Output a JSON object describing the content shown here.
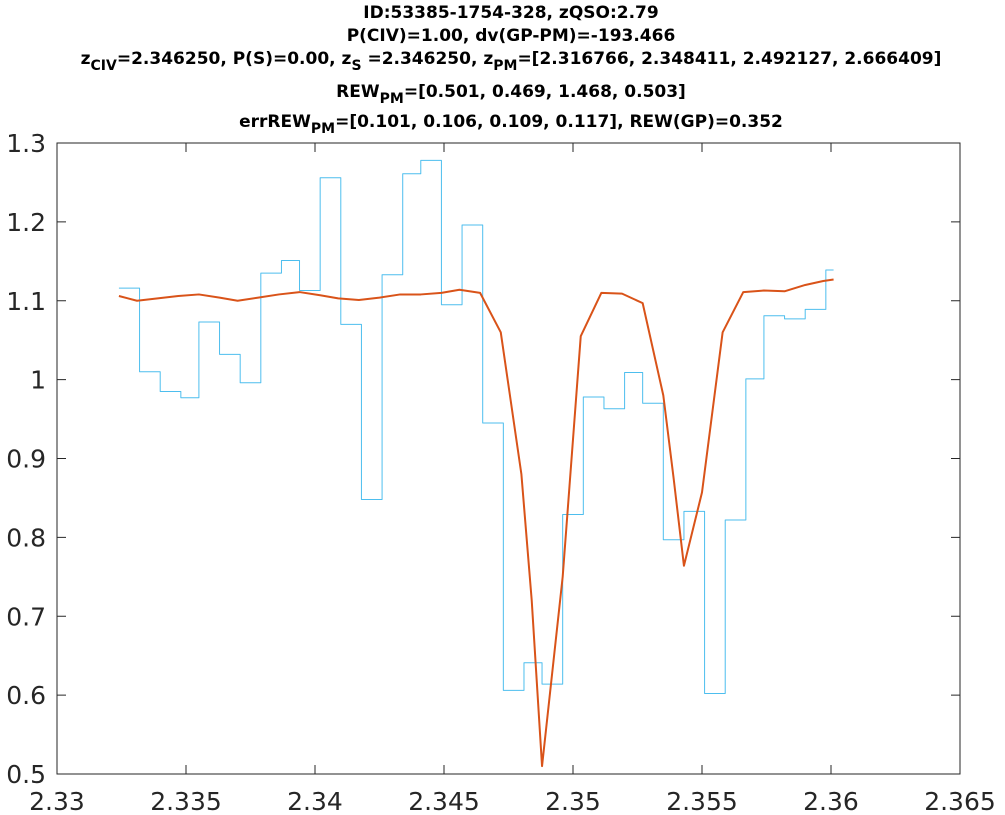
{
  "chart_data": {
    "type": "line",
    "title_lines": [
      {
        "segments": [
          {
            "text": "ID:53385-1754-328, zQSO:2.79"
          }
        ]
      },
      {
        "segments": [
          {
            "text": "P(CIV)=1.00, dv(GP-PM)=-193.466"
          }
        ]
      },
      {
        "segments": [
          {
            "text": "z"
          },
          {
            "text": "CIV",
            "sub": true
          },
          {
            "text": "=2.346250, P(S)=0.00, z"
          },
          {
            "text": "S",
            "sub": true
          },
          {
            "text": " =2.346250, z"
          },
          {
            "text": "PM",
            "sub": true
          },
          {
            "text": "=[2.316766, 2.348411, 2.492127, 2.666409]"
          }
        ]
      },
      {
        "segments": [
          {
            "text": "REW"
          },
          {
            "text": "PM",
            "sub": true
          },
          {
            "text": "=[0.501, 0.469, 1.468, 0.503]"
          }
        ]
      },
      {
        "segments": [
          {
            "text": "errREW"
          },
          {
            "text": "PM",
            "sub": true
          },
          {
            "text": "=[0.101, 0.106, 0.109, 0.117], REW(GP)=0.352"
          }
        ]
      }
    ],
    "xlim": [
      2.33,
      2.365
    ],
    "ylim": [
      0.5,
      1.3
    ],
    "x_ticks": [
      2.33,
      2.335,
      2.34,
      2.345,
      2.35,
      2.355,
      2.36,
      2.365
    ],
    "x_tick_labels": [
      "2.33",
      "2.335",
      "2.34",
      "2.345",
      "2.35",
      "2.355",
      "2.36",
      "2.365"
    ],
    "y_ticks": [
      0.5,
      0.6,
      0.7,
      0.8,
      0.9,
      1.0,
      1.1,
      1.2,
      1.3
    ],
    "y_tick_labels": [
      "0.5",
      "0.6",
      "0.7",
      "0.8",
      "0.9",
      "1",
      "1.1",
      "1.2",
      "1.3"
    ],
    "grid": false,
    "legend": false,
    "series": [
      {
        "style": "stairs",
        "color": "#4DBEEE",
        "x": [
          2.3324,
          2.3332,
          2.334,
          2.3348,
          2.3355,
          2.3363,
          2.3371,
          2.3379,
          2.3387,
          2.3394,
          2.3402,
          2.341,
          2.3418,
          2.3426,
          2.3434,
          2.3441,
          2.3449,
          2.3457,
          2.3465,
          2.3473,
          2.3481,
          2.3488,
          2.3496,
          2.3504,
          2.3512,
          2.352,
          2.3527,
          2.3535,
          2.3543,
          2.3551,
          2.3559,
          2.3567,
          2.3574,
          2.3582,
          2.359,
          2.3598,
          2.3601
        ],
        "y": [
          1.116,
          1.01,
          0.985,
          0.977,
          1.073,
          1.032,
          0.996,
          1.135,
          1.151,
          1.113,
          1.256,
          1.07,
          0.848,
          1.133,
          1.261,
          1.278,
          1.095,
          1.196,
          0.945,
          0.606,
          0.641,
          0.614,
          0.829,
          0.978,
          0.963,
          1.009,
          0.97,
          0.797,
          0.833,
          0.602,
          0.822,
          1.001,
          1.081,
          1.077,
          1.089,
          1.139,
          1.139
        ]
      },
      {
        "style": "line",
        "color": "#D95319",
        "width": 2,
        "x": [
          2.3324,
          2.3331,
          2.3339,
          2.3347,
          2.3355,
          2.3363,
          2.337,
          2.3378,
          2.3386,
          2.3394,
          2.3402,
          2.3409,
          2.3417,
          2.3425,
          2.3433,
          2.3441,
          2.3449,
          2.3456,
          2.3464,
          2.3472,
          2.348,
          2.3484,
          2.3488,
          2.3496,
          2.3503,
          2.3511,
          2.3519,
          2.3527,
          2.3535,
          2.3539,
          2.3543,
          2.355,
          2.3558,
          2.3566,
          2.3574,
          2.3582,
          2.359,
          2.3597,
          2.3601
        ],
        "y": [
          1.106,
          1.1,
          1.103,
          1.106,
          1.108,
          1.104,
          1.1,
          1.104,
          1.108,
          1.111,
          1.107,
          1.103,
          1.101,
          1.104,
          1.108,
          1.108,
          1.11,
          1.114,
          1.11,
          1.06,
          0.88,
          0.72,
          0.51,
          0.75,
          1.055,
          1.11,
          1.109,
          1.097,
          0.98,
          0.875,
          0.764,
          0.857,
          1.06,
          1.111,
          1.113,
          1.112,
          1.12,
          1.125,
          1.127
        ]
      }
    ]
  }
}
